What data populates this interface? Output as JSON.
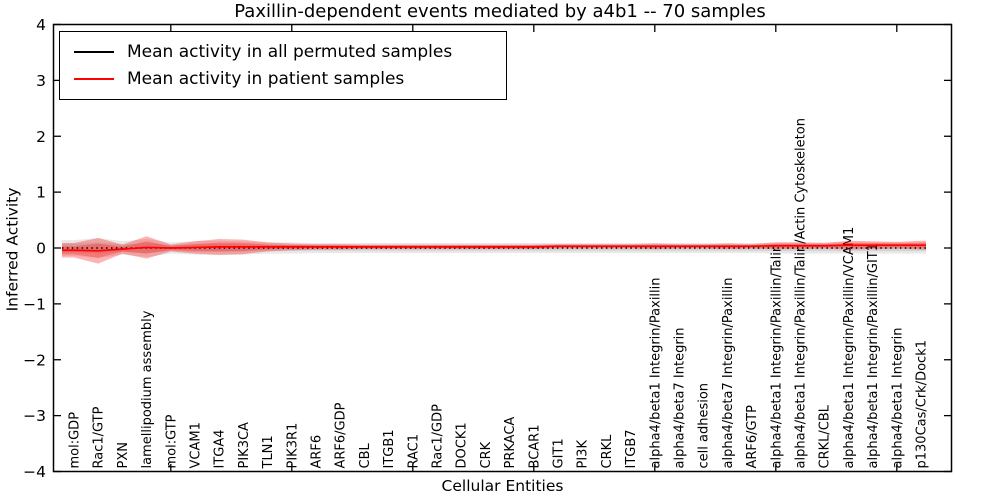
{
  "title": "Paxillin-dependent events mediated by a4b1 -- 70 samples",
  "chart_data": {
    "type": "line",
    "title": "Paxillin-dependent events mediated by a4b1 -- 70 samples",
    "xlabel": "Cellular Entities",
    "ylabel": "Inferred Activity",
    "ylim": [
      -4,
      4
    ],
    "yticks": [
      -4,
      -3,
      -2,
      -1,
      0,
      1,
      2,
      3,
      4
    ],
    "ytick_labels": [
      "−4",
      "−3",
      "−2",
      "−1",
      "0",
      "1",
      "2",
      "3",
      "4"
    ],
    "xtick_major_positions": [
      5,
      10,
      15,
      20,
      25,
      30,
      35
    ],
    "grid": false,
    "legend_position": "upper left",
    "categories": [
      "mol:GDP",
      "Rac1/GTP",
      "PXN",
      "lamellipodium assembly",
      "mol:GTP",
      "VCAM1",
      "ITGA4",
      "PIK3CA",
      "TLN1",
      "PIK3R1",
      "ARF6",
      "ARF6/GDP",
      "CBL",
      "ITGB1",
      "RAC1",
      "Rac1/GDP",
      "DOCK1",
      "CRK",
      "PRKACA",
      "BCAR1",
      "GIT1",
      "PI3K",
      "CRKL",
      "ITGB7",
      "alpha4/beta1 Integrin/Paxillin",
      "alpha4/beta7 Integrin",
      "cell adhesion",
      "alpha4/beta7 Integrin/Paxillin",
      "ARF6/GTP",
      "alpha4/beta1 Integrin/Paxillin/Talin",
      "alpha4/beta1 Integrin/Paxillin/Talin/Actin Cytoskeleton",
      "CRKL/CBL",
      "alpha4/beta1 Integrin/Paxillin/VCAM1",
      "alpha4/beta1 Integrin/Paxillin/GIT1",
      "alpha4/beta1 Integrin",
      "p130Cas/Crk/Dock1"
    ],
    "series": [
      {
        "name": "Mean activity in all permuted samples",
        "color": "#000000",
        "style": "dotted",
        "values": [
          0,
          0,
          0,
          0,
          0,
          0,
          0,
          0,
          0,
          0,
          0,
          0,
          0,
          0,
          0,
          0,
          0,
          0,
          0,
          0,
          0,
          0,
          0,
          0,
          0,
          0,
          0,
          0,
          0,
          0,
          0,
          0,
          0,
          0,
          0,
          0
        ],
        "band": [
          0.14,
          0.18,
          0.12,
          0.16,
          0.1,
          0.12,
          0.13,
          0.12,
          0.1,
          0.1,
          0.09,
          0.09,
          0.09,
          0.09,
          0.09,
          0.09,
          0.09,
          0.09,
          0.09,
          0.09,
          0.09,
          0.09,
          0.09,
          0.09,
          0.09,
          0.09,
          0.09,
          0.09,
          0.09,
          0.1,
          0.1,
          0.1,
          0.1,
          0.1,
          0.1,
          0.1
        ]
      },
      {
        "name": "Mean activity in patient samples",
        "color": "#ff0000",
        "style": "solid",
        "values": [
          -0.04,
          -0.05,
          -0.02,
          0.01,
          0.0,
          0.01,
          0.02,
          0.02,
          0.02,
          0.02,
          0.02,
          0.02,
          0.02,
          0.02,
          0.02,
          0.02,
          0.02,
          0.02,
          0.02,
          0.02,
          0.03,
          0.03,
          0.03,
          0.03,
          0.03,
          0.03,
          0.03,
          0.03,
          0.03,
          0.04,
          0.04,
          0.04,
          0.05,
          0.05,
          0.05,
          0.05
        ],
        "band": [
          0.13,
          0.23,
          0.08,
          0.2,
          0.06,
          0.11,
          0.14,
          0.13,
          0.08,
          0.06,
          0.05,
          0.05,
          0.04,
          0.04,
          0.04,
          0.04,
          0.04,
          0.04,
          0.04,
          0.04,
          0.04,
          0.04,
          0.04,
          0.04,
          0.05,
          0.04,
          0.04,
          0.05,
          0.04,
          0.06,
          0.06,
          0.05,
          0.08,
          0.07,
          0.06,
          0.08
        ]
      }
    ]
  }
}
